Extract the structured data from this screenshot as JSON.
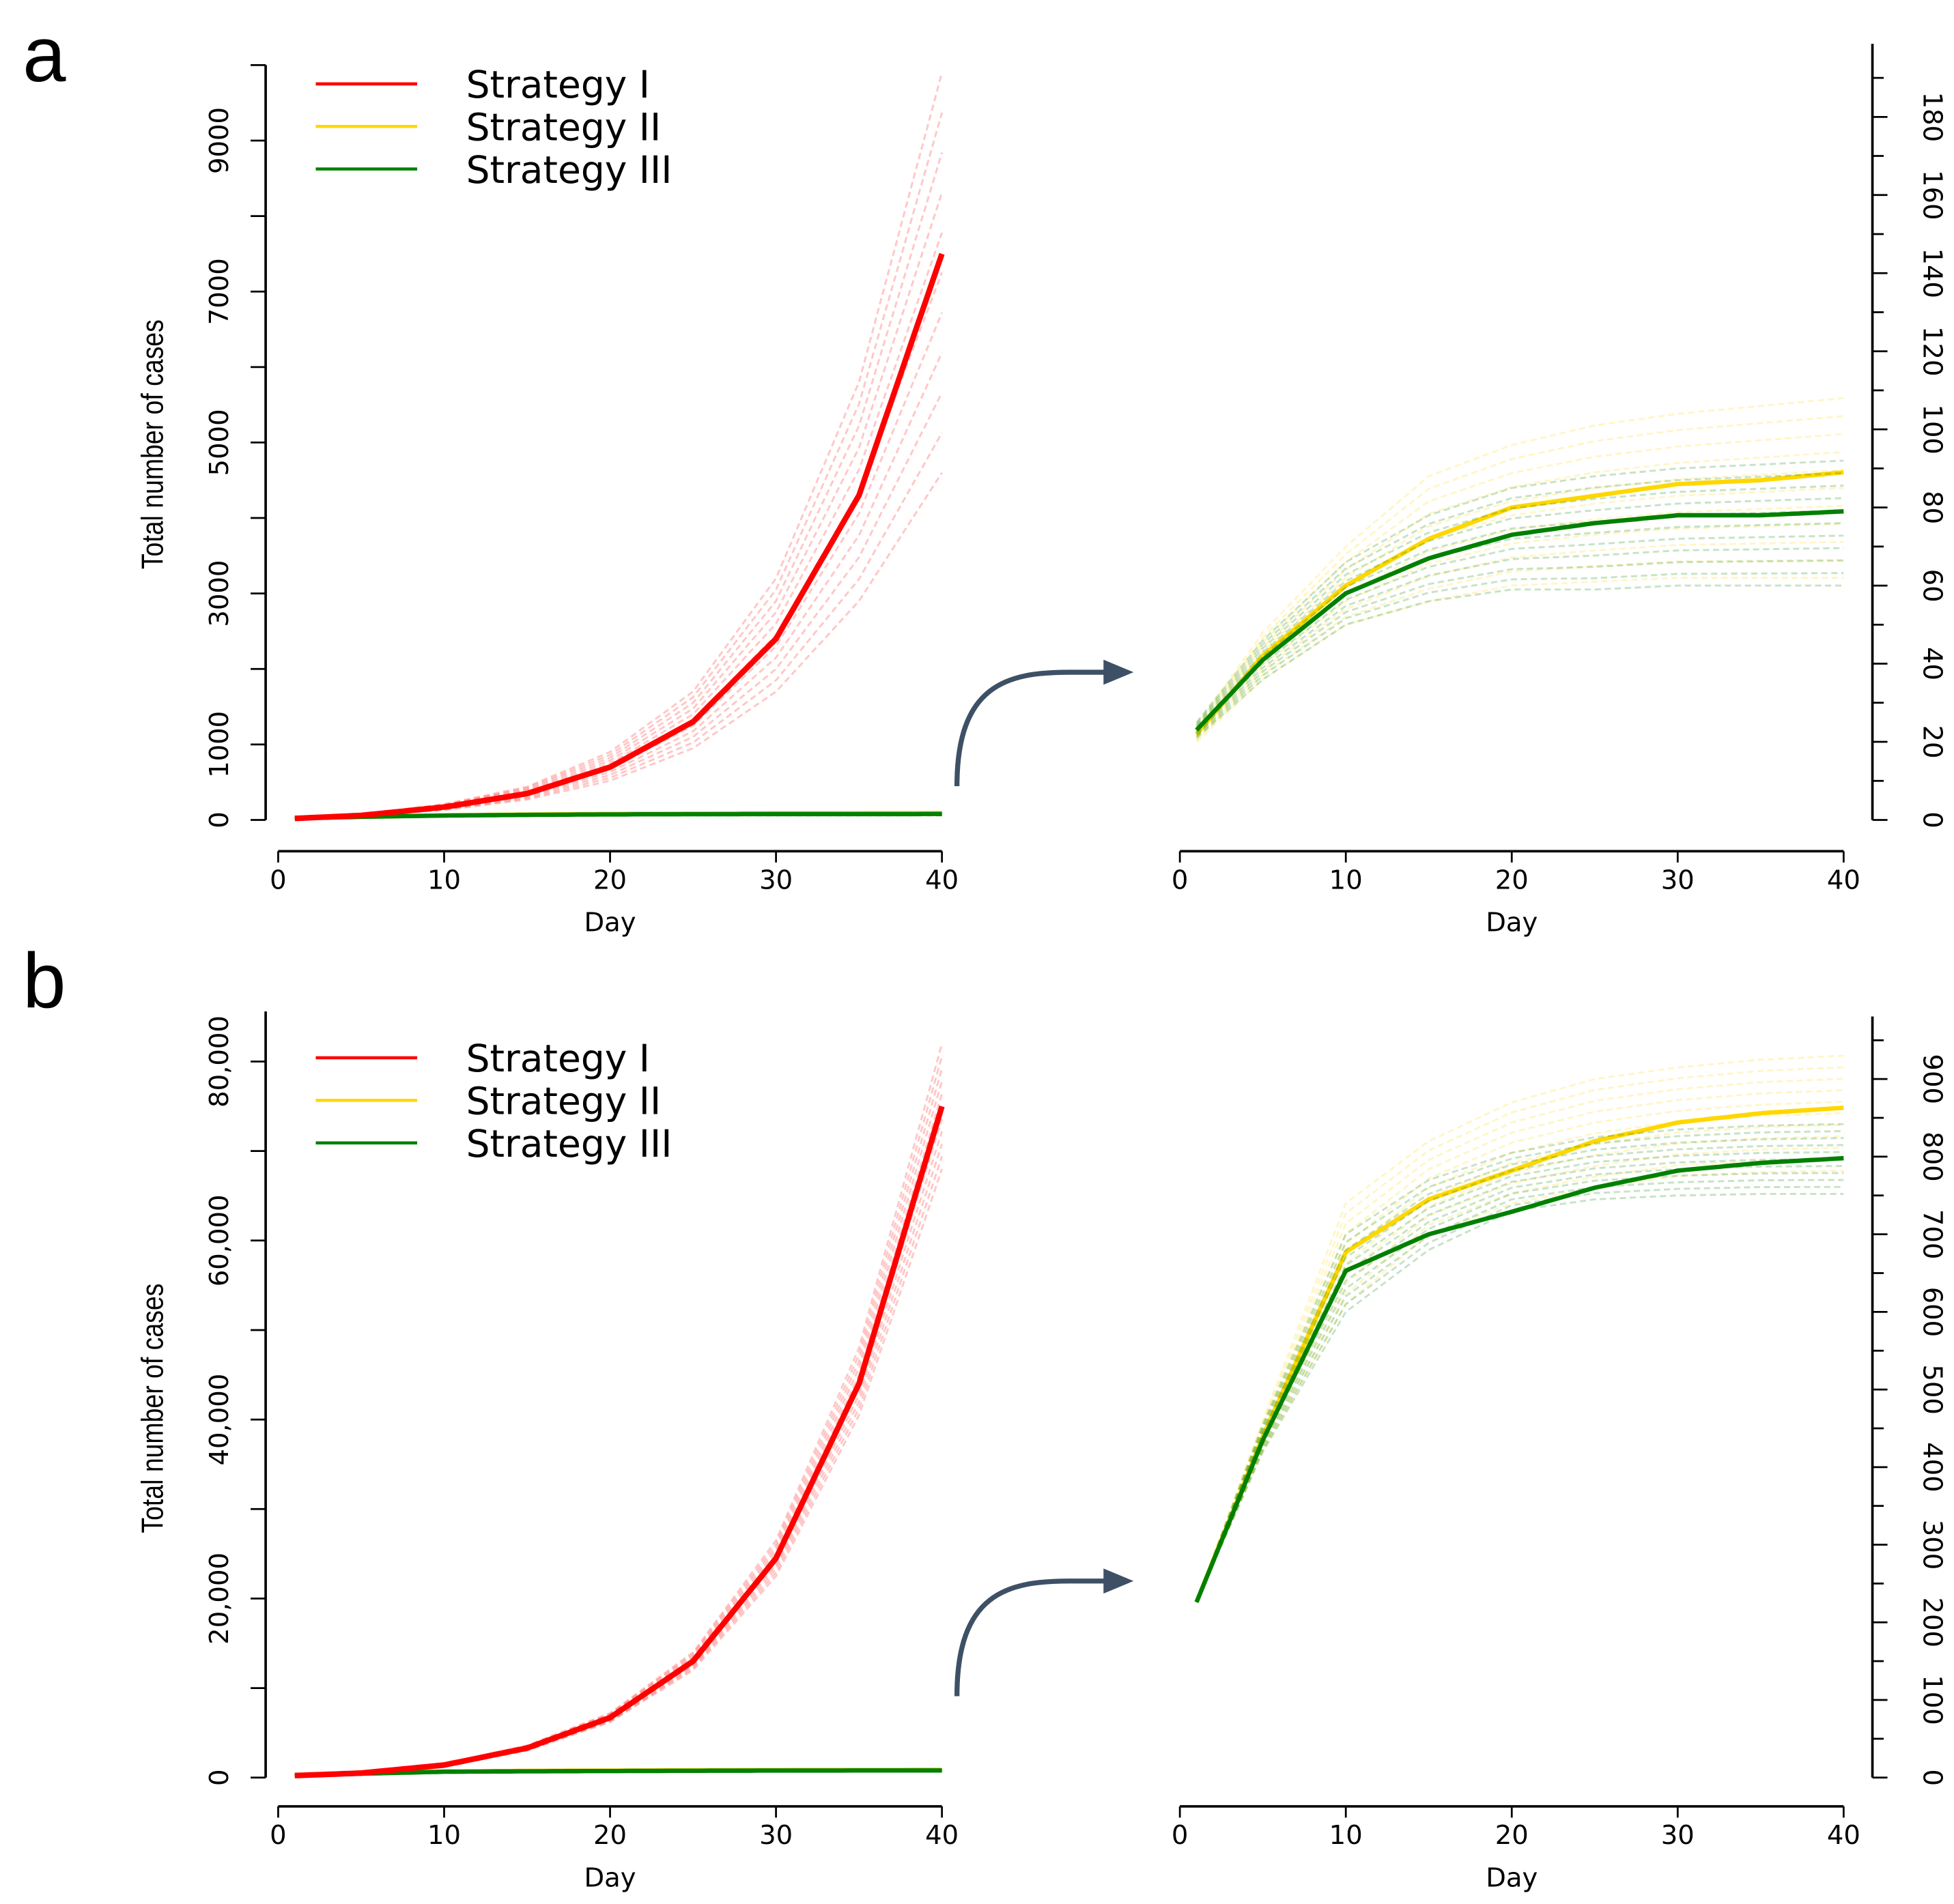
{
  "panel_labels": [
    "a",
    "b"
  ],
  "colors": {
    "Strategy I": "#ff0000",
    "Strategy II": "#ffd700",
    "Strategy III": "#008000",
    "arrow": "#3d5066"
  },
  "chart_data": [
    {
      "panel": "a",
      "type": "line",
      "title": "",
      "xlabel": "Day",
      "ylabel": "Total number of cases",
      "xlim": [
        0,
        40
      ],
      "xticks": [
        0,
        10,
        20,
        30,
        40
      ],
      "ylim": [
        0,
        10000
      ],
      "yticks": [
        0,
        1000,
        3000,
        5000,
        7000,
        9000
      ],
      "yticks_minor_step": 1000,
      "ytick_labels": [
        "0",
        "1000",
        "3000",
        "5000",
        "7000",
        "9000"
      ],
      "legend": {
        "position": "top-left",
        "entries": [
          "Strategy I",
          "Strategy II",
          "Strategy III"
        ]
      },
      "x": [
        1,
        5,
        10,
        15,
        20,
        25,
        30,
        35,
        40
      ],
      "series": [
        {
          "name": "Strategy I",
          "values": [
            20,
            60,
            170,
            350,
            700,
            1300,
            2400,
            4300,
            7500
          ],
          "lower": [
            20,
            50,
            130,
            270,
            520,
            950,
            1700,
            2900,
            4600
          ],
          "upper": [
            20,
            70,
            210,
            440,
            900,
            1700,
            3200,
            5800,
            9900
          ]
        },
        {
          "name": "Strategy II",
          "values": [
            22,
            42,
            60,
            72,
            80,
            83,
            86,
            87,
            89
          ],
          "lower": [
            20,
            36,
            50,
            56,
            60,
            61,
            62,
            62,
            62
          ],
          "upper": [
            24,
            48,
            70,
            88,
            96,
            101,
            104,
            106,
            108
          ]
        },
        {
          "name": "Strategy III",
          "values": [
            23,
            41,
            58,
            67,
            73,
            76,
            78,
            78,
            79
          ],
          "lower": [
            21,
            36,
            50,
            56,
            59,
            59,
            60,
            60,
            60
          ],
          "upper": [
            25,
            46,
            66,
            78,
            85,
            88,
            90,
            91,
            92
          ]
        }
      ],
      "zoom_panel": {
        "xlabel": "Day",
        "xlim": [
          0,
          40
        ],
        "xticks": [
          0,
          10,
          20,
          30,
          40
        ],
        "ylim": [
          0,
          190
        ],
        "yticks": [
          0,
          20,
          40,
          60,
          80,
          100,
          120,
          140,
          160,
          180
        ],
        "yticks_minor_step": 10,
        "series_shown": [
          "Strategy II",
          "Strategy III"
        ]
      }
    },
    {
      "panel": "b",
      "type": "line",
      "title": "",
      "xlabel": "Day",
      "ylabel": "Total number of cases",
      "xlim": [
        0,
        40
      ],
      "xticks": [
        0,
        10,
        20,
        30,
        40
      ],
      "ylim": [
        0,
        85000
      ],
      "yticks": [
        0,
        20000,
        40000,
        60000,
        80000
      ],
      "yticks_minor_step": 10000,
      "ytick_labels": [
        "0",
        "20,000",
        "40,000",
        "60,000",
        "80,000"
      ],
      "legend": {
        "position": "top-left",
        "entries": [
          "Strategy I",
          "Strategy II",
          "Strategy III"
        ]
      },
      "x": [
        1,
        5,
        10,
        15,
        20,
        25,
        30,
        35,
        40
      ],
      "series": [
        {
          "name": "Strategy I",
          "values": [
            220,
            500,
            1400,
            3300,
            6700,
            13000,
            24500,
            44000,
            75000
          ],
          "lower": [
            220,
            480,
            1300,
            3000,
            6200,
            12000,
            22500,
            40500,
            68000
          ],
          "upper": [
            220,
            530,
            1500,
            3600,
            7200,
            14000,
            26500,
            48000,
            82000
          ]
        },
        {
          "name": "Strategy II",
          "values": [
            226,
            440,
            677,
            745,
            782,
            820,
            844,
            856,
            863
          ],
          "lower": [
            226,
            420,
            610,
            700,
            740,
            760,
            775,
            780,
            782
          ],
          "upper": [
            226,
            460,
            740,
            820,
            870,
            900,
            915,
            925,
            930
          ]
        },
        {
          "name": "Strategy III",
          "values": [
            226,
            435,
            653,
            700,
            729,
            760,
            782,
            792,
            798
          ],
          "lower": [
            226,
            420,
            600,
            680,
            730,
            745,
            750,
            752,
            752
          ],
          "upper": [
            226,
            455,
            700,
            770,
            805,
            825,
            835,
            840,
            842
          ]
        }
      ],
      "zoom_panel": {
        "xlabel": "Day",
        "xlim": [
          0,
          40
        ],
        "xticks": [
          0,
          10,
          20,
          30,
          40
        ],
        "ylim": [
          0,
          980
        ],
        "yticks": [
          0,
          100,
          200,
          300,
          400,
          500,
          600,
          700,
          800,
          900
        ],
        "yticks_minor_step": 50,
        "series_shown": [
          "Strategy II",
          "Strategy III"
        ]
      }
    }
  ]
}
